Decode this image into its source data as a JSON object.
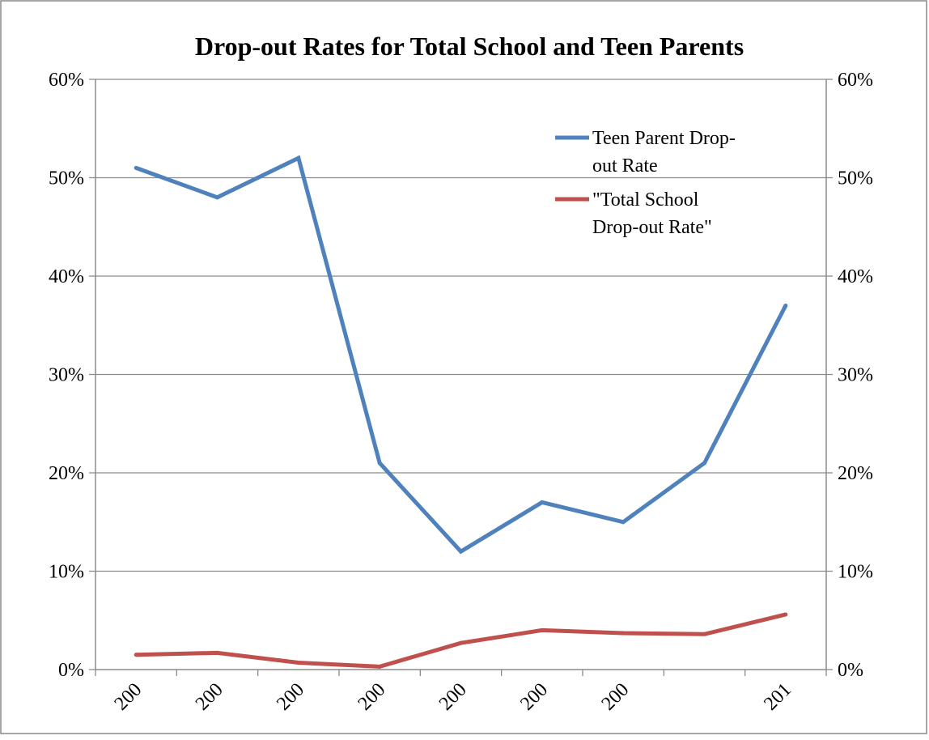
{
  "chart_data": {
    "type": "line",
    "title": "Drop-out Rates for Total School and Teen Parents",
    "categories": [
      "200",
      "200",
      "200",
      "200",
      "200",
      "200",
      "200",
      "",
      "201"
    ],
    "y_tick_labels": [
      "0%",
      "10%",
      "20%",
      "30%",
      "40%",
      "50%",
      "60%"
    ],
    "ylim": [
      0,
      60
    ],
    "y2lim": [
      0,
      60
    ],
    "grid": true,
    "legend_position": "top-right",
    "series": [
      {
        "name": "Teen Parent Drop-out Rate",
        "legend_lines": [
          "Teen Parent Drop-",
          "out Rate"
        ],
        "color": "#4f81bd",
        "values": [
          51,
          48,
          52,
          21,
          12,
          17,
          15,
          21,
          37
        ]
      },
      {
        "name": "\"Total School Drop-out Rate\"",
        "legend_lines": [
          "\"Total School",
          "Drop-out Rate\""
        ],
        "color": "#c0504d",
        "values": [
          1.5,
          1.7,
          0.7,
          0.3,
          2.7,
          4.0,
          3.7,
          3.6,
          5.6
        ]
      }
    ]
  }
}
